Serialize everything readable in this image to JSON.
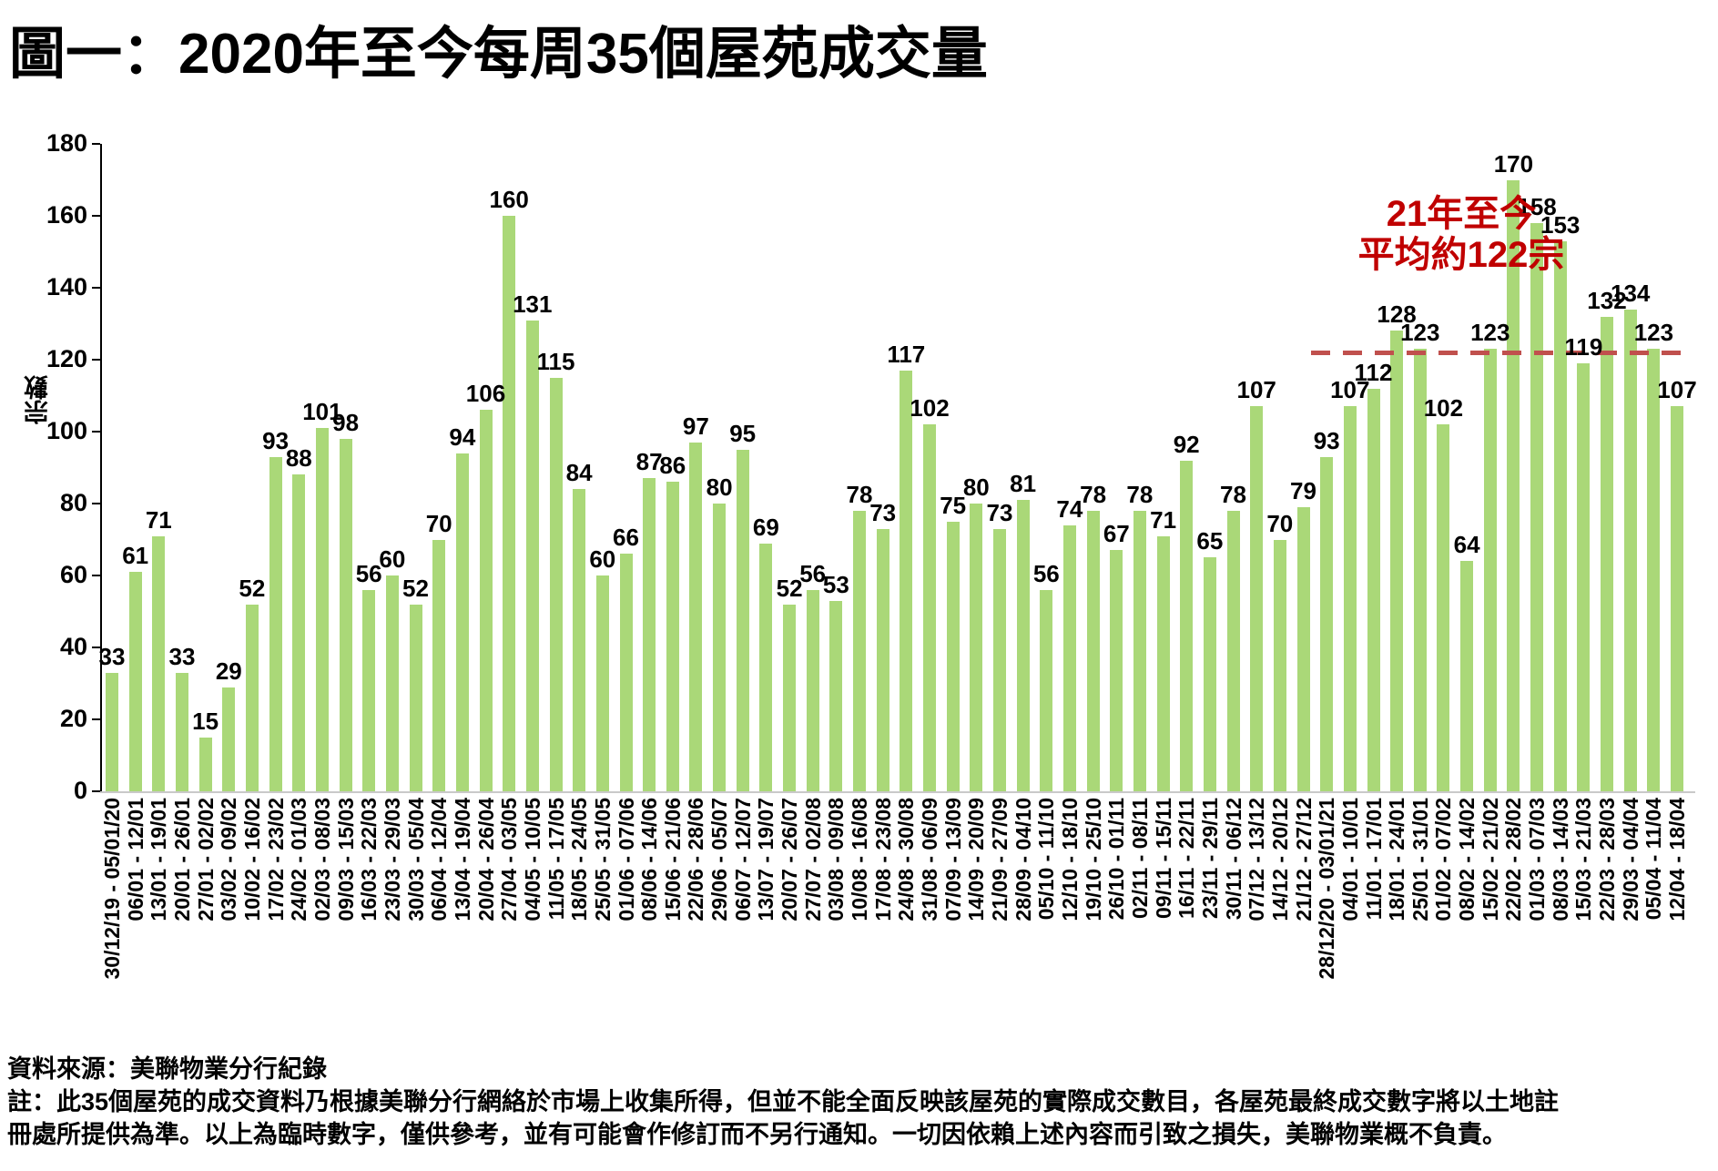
{
  "title": "圖一：2020年至今每周35個屋苑成交量",
  "chart_data": {
    "type": "bar",
    "title": "圖一：2020年至今每周35個屋苑成交量",
    "xlabel": "",
    "ylabel": "宗數",
    "ylim": [
      0,
      180
    ],
    "ytick_interval": 20,
    "grid": false,
    "legend": "none",
    "bar_color": "#aad878",
    "categories": [
      "30/12/19 - 05/01/20",
      "06/01 - 12/01",
      "13/01 - 19/01",
      "20/01 - 26/01",
      "27/01 - 02/02",
      "03/02 - 09/02",
      "10/02 - 16/02",
      "17/02 - 23/02",
      "24/02 - 01/03",
      "02/03 - 08/03",
      "09/03 - 15/03",
      "16/03 - 22/03",
      "23/03 - 29/03",
      "30/03 - 05/04",
      "06/04 - 12/04",
      "13/04 - 19/04",
      "20/04 - 26/04",
      "27/04 - 03/05",
      "04/05 - 10/05",
      "11/05 - 17/05",
      "18/05 - 24/05",
      "25/05 - 31/05",
      "01/06 - 07/06",
      "08/06 - 14/06",
      "15/06 - 21/06",
      "22/06 - 28/06",
      "29/06 - 05/07",
      "06/07 - 12/07",
      "13/07 - 19/07",
      "20/07 - 26/07",
      "27/07 - 02/08",
      "03/08 - 09/08",
      "10/08 - 16/08",
      "17/08 - 23/08",
      "24/08 - 30/08",
      "31/08 - 06/09",
      "07/09 - 13/09",
      "14/09 - 20/09",
      "21/09 - 27/09",
      "28/09 - 04/10",
      "05/10 - 11/10",
      "12/10 - 18/10",
      "19/10 - 25/10",
      "26/10 - 01/11",
      "02/11 - 08/11",
      "09/11 - 15/11",
      "16/11 - 22/11",
      "23/11 - 29/11",
      "30/11 - 06/12",
      "07/12 - 13/12",
      "14/12 - 20/12",
      "21/12 - 27/12",
      "28/12/20 - 03/01/21",
      "04/01 - 10/01",
      "11/01 - 17/01",
      "18/01 - 24/01",
      "25/01 - 31/01",
      "01/02 - 07/02",
      "08/02 - 14/02",
      "15/02 - 21/02",
      "22/02 - 28/02",
      "01/03 - 07/03",
      "08/03 - 14/03",
      "15/03 - 21/03",
      "22/03 - 28/03",
      "29/03 - 04/04",
      "05/04 - 11/04",
      "12/04 - 18/04"
    ],
    "values": [
      33,
      61,
      71,
      33,
      15,
      29,
      52,
      93,
      88,
      101,
      98,
      56,
      60,
      52,
      70,
      94,
      106,
      160,
      131,
      115,
      84,
      60,
      66,
      87,
      86,
      97,
      80,
      95,
      69,
      52,
      56,
      53,
      78,
      73,
      117,
      102,
      75,
      80,
      73,
      81,
      56,
      74,
      78,
      67,
      78,
      71,
      92,
      65,
      78,
      107,
      70,
      79,
      93,
      107,
      112,
      128,
      123,
      102,
      64,
      123,
      170,
      158,
      153,
      119,
      132,
      134,
      123,
      107
    ],
    "average_line": {
      "value": 122,
      "starts_at_category": "28/12/20 - 03/01/21",
      "line_color": "#c0504d",
      "text_color": "#c00000",
      "label_line1": "21年至今",
      "label_line2": "平均約122宗"
    }
  },
  "footer": {
    "source": "資料來源：美聯物業分行紀錄",
    "note_line1": "註：此35個屋苑的成交資料乃根據美聯分行網絡於市場上收集所得，但並不能全面反映該屋苑的實際成交數目，各屋苑最終成交數字將以土地註",
    "note_line2": "冊處所提供為準。以上為臨時數字，僅供參考，並有可能會作修訂而不另行通知。一切因依賴上述內容而引致之損失，美聯物業概不負責。"
  }
}
